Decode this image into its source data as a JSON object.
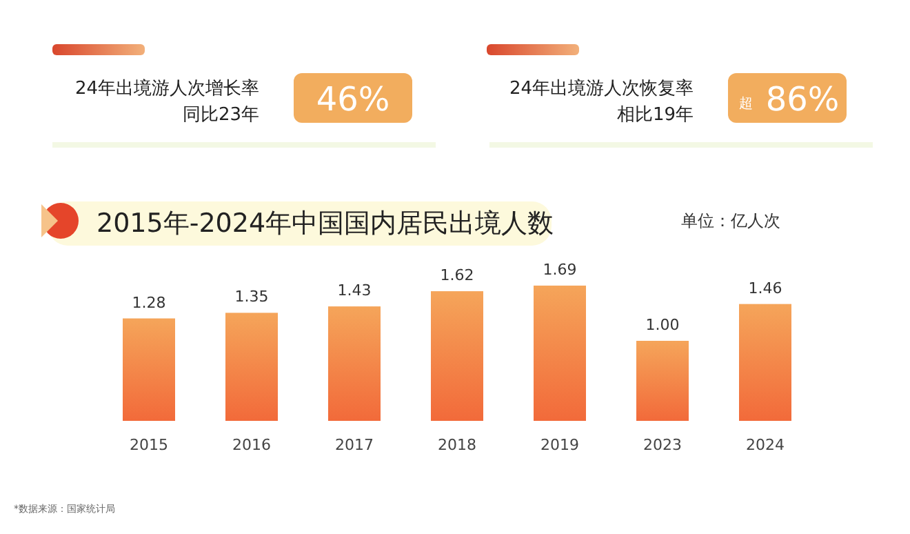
{
  "chart_data": {
    "type": "bar",
    "title": "2015年-2024年中国国内居民出境人数",
    "subtitle": "单位：亿人次",
    "categories": [
      "2015",
      "2016",
      "2017",
      "2018",
      "2019",
      "2023",
      "2024"
    ],
    "values": [
      1.28,
      1.35,
      1.43,
      1.62,
      1.69,
      1.0,
      1.46
    ],
    "value_labels": [
      "1.28",
      "1.35",
      "1.43",
      "1.62",
      "1.69",
      "1.00",
      "1.46"
    ],
    "color": "#f26a3a",
    "annotations": [
      "24年出境游人次增长率",
      "同比23年",
      "46%",
      "24年出境游人次恢复率",
      "相比19年",
      "超",
      "86%",
      "*数据来源：国家统计局"
    ]
  }
}
